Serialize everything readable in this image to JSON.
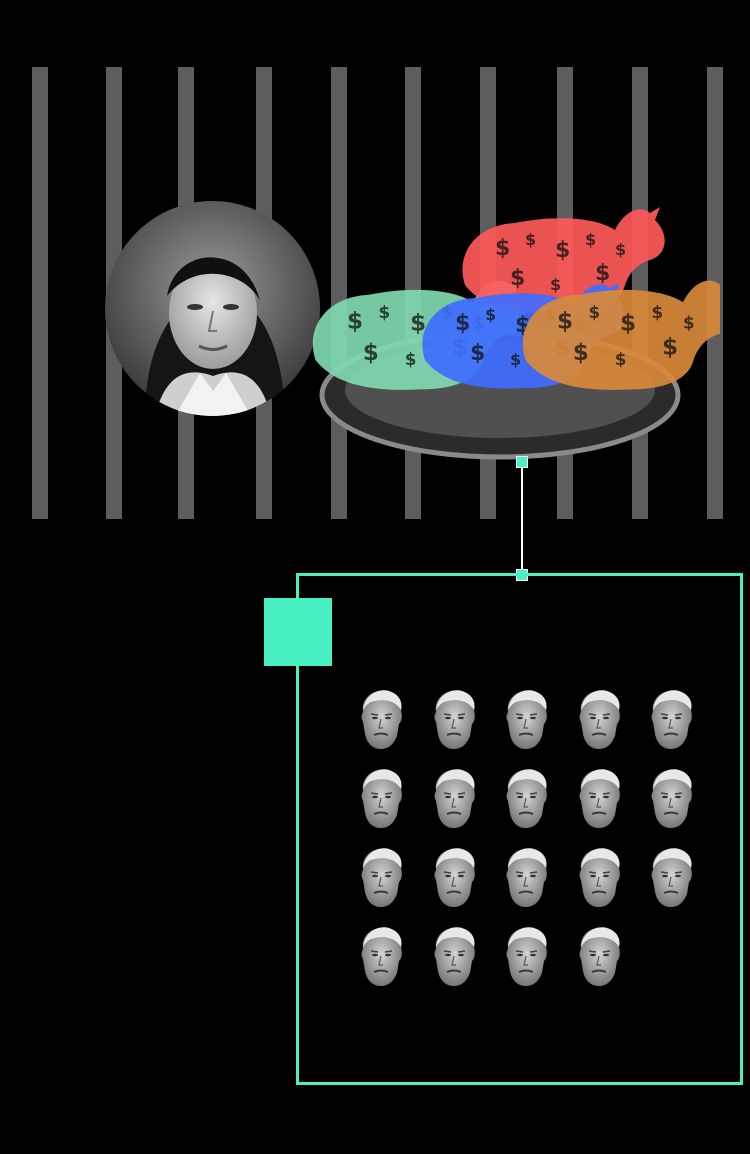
{
  "colors": {
    "accent": "#48f0c2",
    "background": "#000000",
    "bars": "#969696"
  },
  "illustration": {
    "bar_count": 10,
    "cows": [
      {
        "color": "#ff5a5a",
        "icon": "cow-icon"
      },
      {
        "color": "#7fd9b0",
        "icon": "cow-icon"
      },
      {
        "color": "#3f6dff",
        "icon": "cow-icon"
      },
      {
        "color": "#d98a3a",
        "icon": "cow-icon"
      }
    ],
    "dollar_symbol": "$",
    "face_count": 19,
    "face_columns": 5
  }
}
